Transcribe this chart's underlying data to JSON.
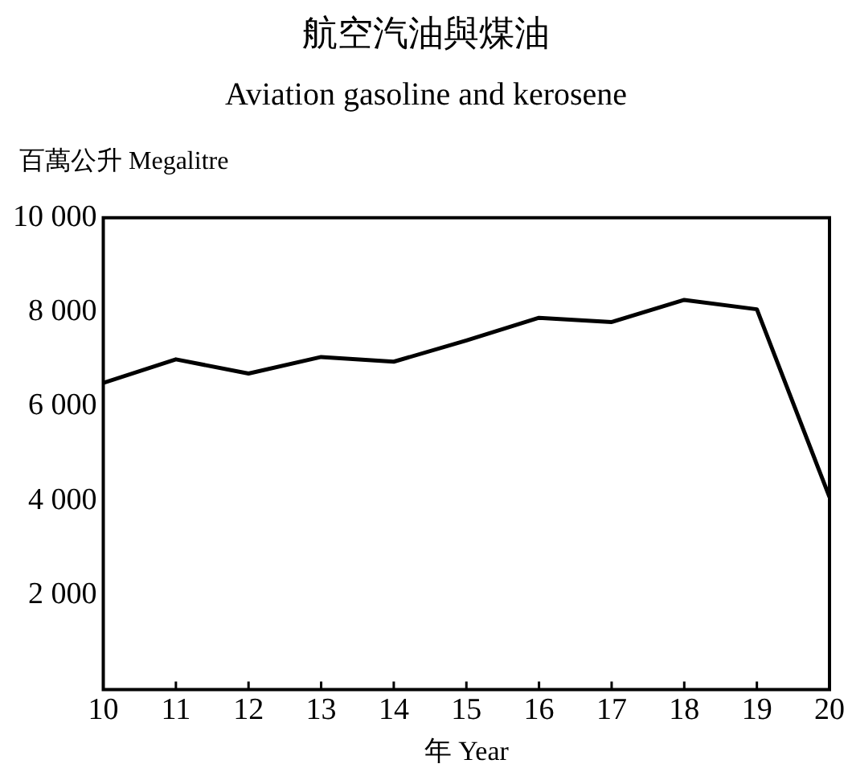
{
  "chart_data": {
    "type": "line",
    "title": "航空汽油與煤油",
    "subtitle": "Aviation gasoline and kerosene",
    "ylabel": "百萬公升 Megalitre",
    "xlabel": "年 Year",
    "x": [
      10,
      11,
      12,
      13,
      14,
      15,
      16,
      17,
      18,
      19,
      20
    ],
    "series": [
      {
        "color": "#000000",
        "values": [
          6500,
          7000,
          6700,
          7050,
          6950,
          7400,
          7880,
          7790,
          8260,
          8060,
          4080
        ]
      }
    ],
    "xlim": [
      10,
      20
    ],
    "xticks": [
      10,
      11,
      12,
      13,
      14,
      15,
      16,
      17,
      18,
      19,
      20
    ],
    "ylim": [
      0,
      10000
    ],
    "yticks": [
      {
        "value": 2000,
        "label": "2 000"
      },
      {
        "value": 4000,
        "label": "4 000"
      },
      {
        "value": 6000,
        "label": "6 000"
      },
      {
        "value": 8000,
        "label": "8 000"
      },
      {
        "value": 10000,
        "label": "10 000"
      }
    ],
    "grid": false,
    "legend": false,
    "marker": "none",
    "line_style": "solid"
  }
}
